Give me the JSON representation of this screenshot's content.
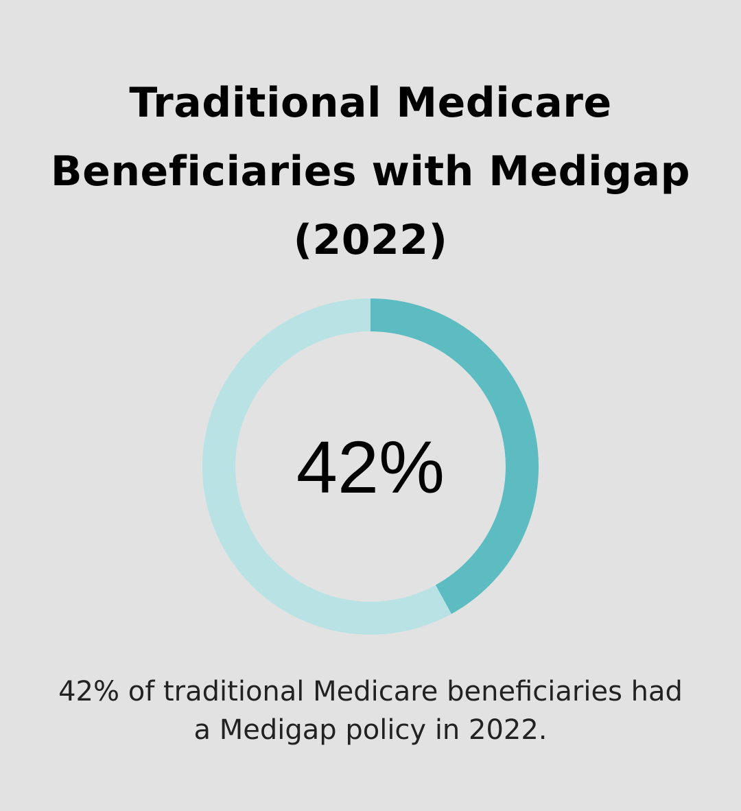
{
  "title_lines": [
    "Traditional Medicare",
    "Beneficiaries with Medigap",
    "(2022)"
  ],
  "caption_lines": [
    "42% of traditional Medicare beneficiaries had",
    "a Medigap policy in 2022."
  ],
  "colors": {
    "background": "#e1e2e1",
    "filled": "#5cbcc2",
    "remaining": "#b9e2e5",
    "text": "#000000"
  },
  "chart_data": {
    "type": "pie",
    "variant": "donut",
    "title": "Traditional Medicare Beneficiaries with Medigap (2022)",
    "center_label": "42%",
    "slices": [
      {
        "value": 42
      },
      {
        "value": 58
      }
    ]
  }
}
